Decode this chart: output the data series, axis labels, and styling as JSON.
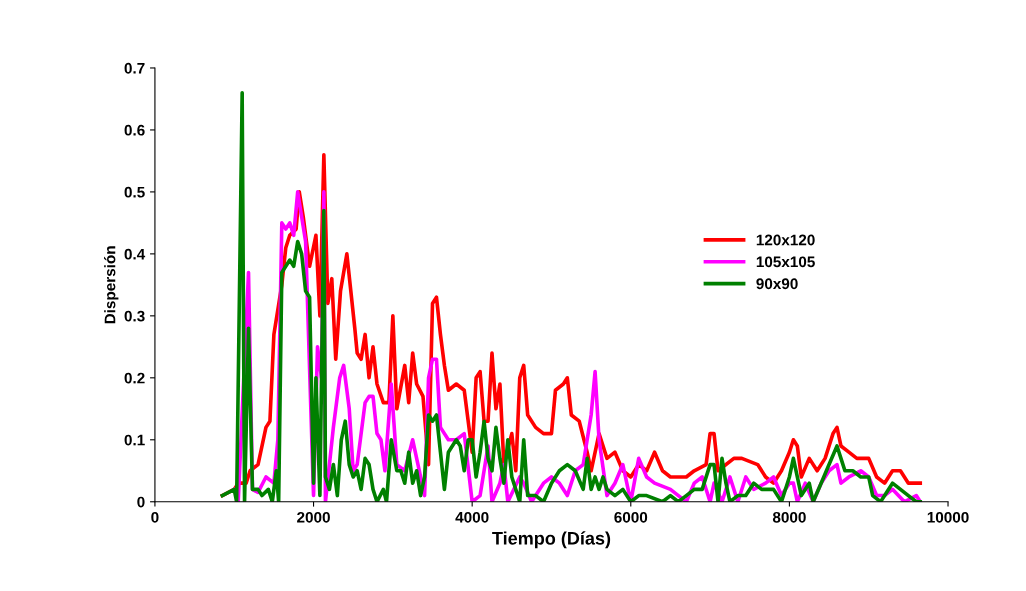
{
  "chart_data": {
    "type": "line",
    "xlabel": "Tiempo (Días)",
    "ylabel": "Dispersión",
    "xlim": [
      0,
      10000
    ],
    "xticks": [
      0,
      2000,
      4000,
      6000,
      8000,
      10000
    ],
    "ylim": [
      0,
      0.7
    ],
    "yticks": [
      0,
      0.1,
      0.2,
      0.3,
      0.4,
      0.5,
      0.6,
      0.7
    ],
    "grid": false,
    "legend": "right",
    "marker": "none",
    "line_style": "solid",
    "series": [
      {
        "name": "120x120",
        "color": "#ff0000",
        "x": [
          850,
          1000,
          1050,
          1150,
          1200,
          1300,
          1400,
          1450,
          1500,
          1600,
          1650,
          1700,
          1780,
          1820,
          1870,
          1950,
          2030,
          2080,
          2130,
          2180,
          2230,
          2280,
          2340,
          2420,
          2470,
          2520,
          2550,
          2600,
          2650,
          2700,
          2750,
          2800,
          2880,
          2950,
          3000,
          3050,
          3150,
          3200,
          3250,
          3300,
          3380,
          3450,
          3500,
          3550,
          3600,
          3650,
          3700,
          3800,
          3900,
          4000,
          4050,
          4100,
          4150,
          4200,
          4250,
          4300,
          4350,
          4400,
          4500,
          4550,
          4600,
          4650,
          4700,
          4800,
          4900,
          5000,
          5050,
          5150,
          5200,
          5250,
          5350,
          5450,
          5500,
          5600,
          5700,
          5800,
          5900,
          6000,
          6100,
          6200,
          6300,
          6400,
          6500,
          6700,
          6800,
          6950,
          7000,
          7050,
          7100,
          7300,
          7400,
          7600,
          7700,
          7800,
          7900,
          8000,
          8050,
          8100,
          8150,
          8250,
          8350,
          8450,
          8550,
          8600,
          8650,
          8750,
          8850,
          9000,
          9100,
          9200,
          9300,
          9400,
          9500,
          9600,
          9650
        ],
        "values": [
          0.01,
          0.02,
          0.03,
          0.03,
          0.05,
          0.06,
          0.12,
          0.13,
          0.27,
          0.35,
          0.41,
          0.43,
          0.44,
          0.5,
          0.46,
          0.38,
          0.43,
          0.3,
          0.56,
          0.32,
          0.36,
          0.23,
          0.34,
          0.4,
          0.34,
          0.28,
          0.24,
          0.23,
          0.27,
          0.2,
          0.25,
          0.19,
          0.16,
          0.16,
          0.3,
          0.15,
          0.22,
          0.16,
          0.24,
          0.19,
          0.17,
          0.06,
          0.32,
          0.33,
          0.27,
          0.22,
          0.18,
          0.19,
          0.18,
          0.08,
          0.2,
          0.21,
          0.13,
          0.13,
          0.24,
          0.15,
          0.19,
          0.06,
          0.11,
          0.05,
          0.2,
          0.22,
          0.14,
          0.12,
          0.11,
          0.11,
          0.18,
          0.19,
          0.2,
          0.14,
          0.13,
          0.08,
          0.05,
          0.11,
          0.07,
          0.08,
          0.05,
          0.04,
          0.06,
          0.05,
          0.08,
          0.05,
          0.04,
          0.04,
          0.05,
          0.06,
          0.11,
          0.11,
          0.05,
          0.07,
          0.07,
          0.06,
          0.04,
          0.03,
          0.05,
          0.08,
          0.1,
          0.09,
          0.04,
          0.07,
          0.05,
          0.07,
          0.11,
          0.12,
          0.09,
          0.08,
          0.07,
          0.07,
          0.04,
          0.03,
          0.05,
          0.05,
          0.03,
          0.03,
          0.03
        ]
      },
      {
        "name": "105x105",
        "color": "#ff00ff",
        "x": [
          1000,
          1050,
          1180,
          1230,
          1300,
          1400,
          1500,
          1550,
          1600,
          1650,
          1700,
          1750,
          1800,
          1850,
          1900,
          2000,
          2050,
          2100,
          2130,
          2150,
          2200,
          2250,
          2330,
          2380,
          2450,
          2500,
          2550,
          2650,
          2700,
          2750,
          2800,
          2850,
          2900,
          2980,
          3050,
          3150,
          3250,
          3300,
          3400,
          3450,
          3500,
          3550,
          3600,
          3700,
          3800,
          3900,
          4000,
          4100,
          4200,
          4250,
          4350,
          4400,
          4450,
          4600,
          4650,
          4750,
          4900,
          5000,
          5100,
          5200,
          5300,
          5400,
          5500,
          5550,
          5600,
          5700,
          5800,
          5900,
          6000,
          6100,
          6200,
          6300,
          6500,
          6600,
          6700,
          6800,
          6900,
          7000,
          7050,
          7150,
          7250,
          7350,
          7450,
          7550,
          7700,
          7800,
          7900,
          8000,
          8050,
          8100,
          8200,
          8300,
          8400,
          8500,
          8600,
          8650,
          8750,
          8900,
          9000,
          9100,
          9200,
          9300,
          9450,
          9600,
          9650
        ],
        "values": [
          0.02,
          0.0,
          0.37,
          0.02,
          0.015,
          0.04,
          0.03,
          0.1,
          0.45,
          0.44,
          0.45,
          0.43,
          0.5,
          0.46,
          0.42,
          0.01,
          0.25,
          0.2,
          0.5,
          0.0,
          0.06,
          0.12,
          0.2,
          0.22,
          0.15,
          0.05,
          0.06,
          0.16,
          0.17,
          0.17,
          0.11,
          0.1,
          0.05,
          0.19,
          0.06,
          0.05,
          0.1,
          0.07,
          0.01,
          0.2,
          0.23,
          0.23,
          0.12,
          0.1,
          0.1,
          0.11,
          0.0,
          0.01,
          0.09,
          0.0,
          0.03,
          0.06,
          0.0,
          0.04,
          0.03,
          0.0,
          0.03,
          0.04,
          0.03,
          0.01,
          0.05,
          0.06,
          0.14,
          0.21,
          0.1,
          0.01,
          0.03,
          0.06,
          0.0,
          0.07,
          0.04,
          0.03,
          0.02,
          0.01,
          0.0,
          0.03,
          0.04,
          0.0,
          0.03,
          0.0,
          0.04,
          0.0,
          0.04,
          0.02,
          0.03,
          0.04,
          0.01,
          0.03,
          0.03,
          0.0,
          0.03,
          0.0,
          0.03,
          0.05,
          0.06,
          0.03,
          0.04,
          0.05,
          0.04,
          0.01,
          0.01,
          0.02,
          0.0,
          0.01,
          0.0
        ]
      },
      {
        "name": "90x90",
        "color": "#008000",
        "x": [
          850,
          1000,
          1030,
          1100,
          1130,
          1180,
          1230,
          1300,
          1350,
          1430,
          1480,
          1530,
          1560,
          1600,
          1650,
          1700,
          1750,
          1800,
          1850,
          1900,
          1950,
          2000,
          2030,
          2080,
          2130,
          2150,
          2200,
          2250,
          2300,
          2350,
          2400,
          2450,
          2500,
          2550,
          2600,
          2650,
          2700,
          2750,
          2800,
          2880,
          2920,
          2980,
          3050,
          3100,
          3150,
          3200,
          3250,
          3300,
          3350,
          3400,
          3450,
          3500,
          3550,
          3600,
          3650,
          3700,
          3800,
          3850,
          3900,
          3950,
          4000,
          4050,
          4100,
          4150,
          4200,
          4250,
          4300,
          4350,
          4400,
          4450,
          4500,
          4550,
          4600,
          4650,
          4700,
          4800,
          4900,
          5000,
          5100,
          5200,
          5300,
          5400,
          5450,
          5500,
          5550,
          5600,
          5650,
          5700,
          5800,
          5900,
          6000,
          6100,
          6200,
          6400,
          6500,
          6600,
          6700,
          6800,
          6900,
          7000,
          7050,
          7100,
          7150,
          7200,
          7250,
          7350,
          7450,
          7550,
          7650,
          7800,
          7900,
          8000,
          8050,
          8100,
          8150,
          8250,
          8300,
          8400,
          8500,
          8600,
          8650,
          8700,
          8800,
          8900,
          9000,
          9050,
          9150,
          9300,
          9400,
          9500,
          9600,
          9650
        ],
        "values": [
          0.01,
          0.02,
          0.0,
          0.66,
          0.0,
          0.28,
          0.02,
          0.02,
          0.01,
          0.02,
          0.0,
          0.05,
          0.0,
          0.37,
          0.38,
          0.39,
          0.38,
          0.42,
          0.4,
          0.34,
          0.33,
          0.03,
          0.2,
          0.01,
          0.47,
          0.04,
          0.02,
          0.06,
          0.01,
          0.1,
          0.13,
          0.06,
          0.04,
          0.05,
          0.02,
          0.07,
          0.06,
          0.02,
          0.0,
          0.02,
          0.0,
          0.1,
          0.05,
          0.05,
          0.03,
          0.08,
          0.03,
          0.05,
          0.01,
          0.04,
          0.14,
          0.13,
          0.14,
          0.08,
          0.02,
          0.08,
          0.1,
          0.09,
          0.05,
          0.1,
          0.1,
          0.04,
          0.08,
          0.13,
          0.07,
          0.05,
          0.12,
          0.07,
          0.03,
          0.1,
          0.04,
          0.02,
          0.0,
          0.1,
          0.01,
          0.01,
          0.0,
          0.03,
          0.05,
          0.06,
          0.05,
          0.02,
          0.07,
          0.02,
          0.04,
          0.02,
          0.04,
          0.02,
          0.01,
          0.02,
          0.0,
          0.01,
          0.01,
          0.0,
          0.01,
          0.0,
          0.01,
          0.02,
          0.02,
          0.06,
          0.06,
          0.0,
          0.07,
          0.03,
          0.0,
          0.01,
          0.01,
          0.03,
          0.02,
          0.02,
          0.0,
          0.04,
          0.07,
          0.04,
          0.01,
          0.03,
          0.0,
          0.03,
          0.06,
          0.09,
          0.07,
          0.05,
          0.05,
          0.04,
          0.04,
          0.01,
          0.0,
          0.03,
          0.02,
          0.01,
          0.0,
          0.0
        ]
      }
    ]
  }
}
